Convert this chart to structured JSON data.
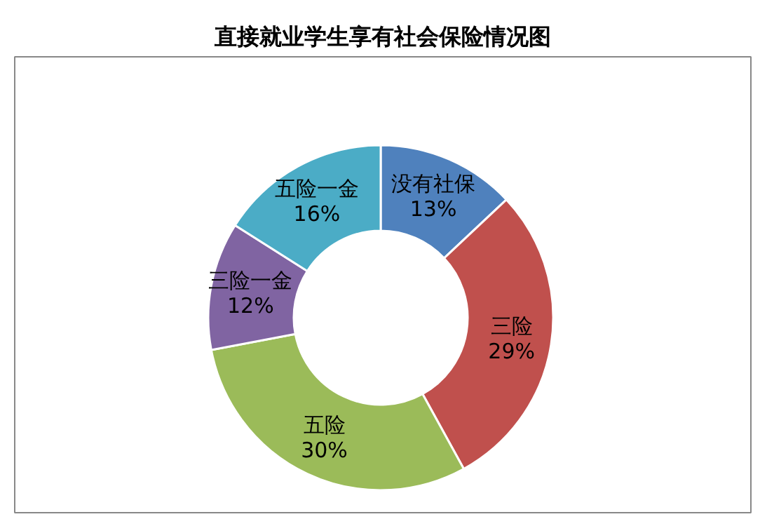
{
  "chart_data": {
    "type": "donut",
    "title": "直接就业学生享有社会保险情况图",
    "categories": [
      "没有社保",
      "三险",
      "五险",
      "三险一金",
      "五险一金"
    ],
    "values": [
      13,
      29,
      30,
      12,
      16
    ],
    "colors": [
      "#4f81bd",
      "#c0504d",
      "#9bbb59",
      "#8064a2",
      "#4bacc6"
    ],
    "value_labels": [
      "13%",
      "29%",
      "30%",
      "12%",
      "16%"
    ]
  }
}
